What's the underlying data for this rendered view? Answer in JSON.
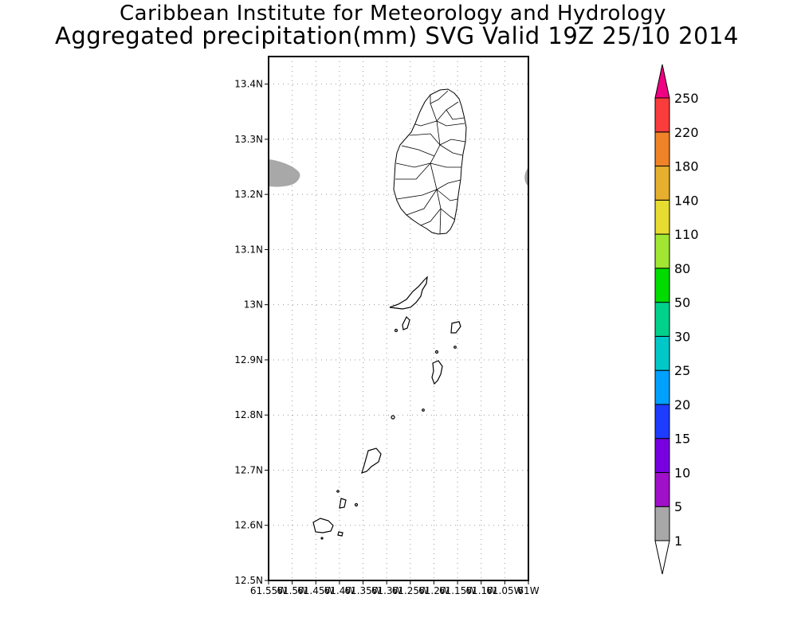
{
  "header": {
    "institution": "Caribbean Institute for Meteorology and Hydrology",
    "product": "Aggregated precipitation(mm) SVG Valid 19Z 25/10 2014"
  },
  "map": {
    "lon_range": [
      -61.55,
      -61.0
    ],
    "lat_range": [
      12.5,
      13.45
    ],
    "lat_ticks": [
      {
        "value": 13.4,
        "label": "13.4N"
      },
      {
        "value": 13.3,
        "label": "13.3N"
      },
      {
        "value": 13.2,
        "label": "13.2N"
      },
      {
        "value": 13.1,
        "label": "13.1N"
      },
      {
        "value": 13.0,
        "label": "13N"
      },
      {
        "value": 12.9,
        "label": "12.9N"
      },
      {
        "value": 12.8,
        "label": "12.8N"
      },
      {
        "value": 12.7,
        "label": "12.7N"
      },
      {
        "value": 12.6,
        "label": "12.6N"
      },
      {
        "value": 12.5,
        "label": "12.5N"
      }
    ],
    "lon_ticks": [
      {
        "value": -61.55,
        "label": "61.55W"
      },
      {
        "value": -61.5,
        "label": "61.5W"
      },
      {
        "value": -61.45,
        "label": "61.45W"
      },
      {
        "value": -61.4,
        "label": "61.4W"
      },
      {
        "value": -61.35,
        "label": "61.35W"
      },
      {
        "value": -61.3,
        "label": "61.3W"
      },
      {
        "value": -61.25,
        "label": "61.25W"
      },
      {
        "value": -61.2,
        "label": "61.2W"
      },
      {
        "value": -61.15,
        "label": "61.15W"
      },
      {
        "value": -61.1,
        "label": "61.1W"
      },
      {
        "value": -61.05,
        "label": "61.05W"
      },
      {
        "value": -61.0,
        "label": "61W"
      }
    ],
    "grid": "dotted"
  },
  "legend": {
    "levels": [
      {
        "label": "1",
        "color": "#a8a8a8"
      },
      {
        "label": "5",
        "color": "#a010c8"
      },
      {
        "label": "10",
        "color": "#7800e0"
      },
      {
        "label": "15",
        "color": "#1e3cff"
      },
      {
        "label": "20",
        "color": "#00a0ff"
      },
      {
        "label": "25",
        "color": "#00c8c8"
      },
      {
        "label": "30",
        "color": "#00d28c"
      },
      {
        "label": "50",
        "color": "#00dc00"
      },
      {
        "label": "80",
        "color": "#a0e632"
      },
      {
        "label": "110",
        "color": "#e6dc32"
      },
      {
        "label": "140",
        "color": "#e6af2d"
      },
      {
        "label": "180",
        "color": "#f08228"
      },
      {
        "label": "220",
        "color": "#fa3c3c"
      },
      {
        "label": "250",
        "color": "#f00082"
      }
    ],
    "below_min_color": "#ffffff",
    "above_max_color": "#f00082"
  }
}
